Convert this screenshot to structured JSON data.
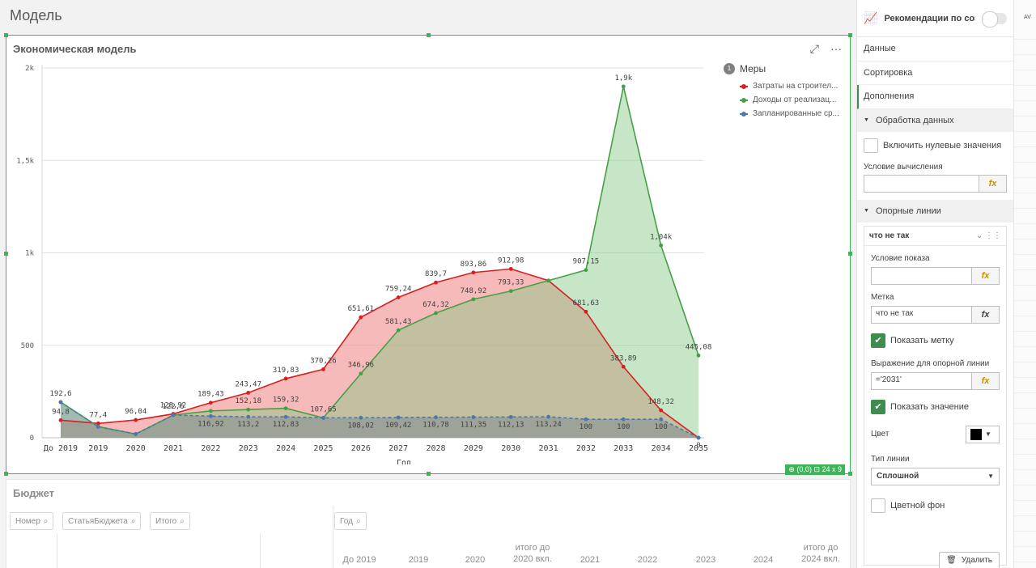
{
  "sheet": {
    "title": "Модель"
  },
  "chart_panel": {
    "title": "Экономическая модель",
    "icons": [
      "expand-icon",
      "more-icon"
    ],
    "footer": "⊕ (0,0) ⊡ 24 x 9"
  },
  "legend": {
    "title": "Меры",
    "badge": "1",
    "items": [
      {
        "label": "Затраты на строител...",
        "color": "#d62020"
      },
      {
        "label": "Доходы от реализац...",
        "color": "#45a045"
      },
      {
        "label": "Запланированные ср...",
        "color": "#4a78a8"
      }
    ]
  },
  "chart_data": {
    "type": "area",
    "xlabel": "Год",
    "ylabel": "",
    "ylim": [
      0,
      2000
    ],
    "yticks": [
      {
        "v": 0,
        "label": "0"
      },
      {
        "v": 500,
        "label": "500"
      },
      {
        "v": 1000,
        "label": "1k"
      },
      {
        "v": 1500,
        "label": "1,5k"
      },
      {
        "v": 2000,
        "label": "2k"
      }
    ],
    "categories": [
      "До 2019",
      "2019",
      "2020",
      "2021",
      "2022",
      "2023",
      "2024",
      "2025",
      "2026",
      "2027",
      "2028",
      "2029",
      "2030",
      "2031",
      "2032",
      "2033",
      "2034",
      "2035"
    ],
    "grid": "horizontal",
    "legend_position": "right",
    "series": [
      {
        "color": "#d62020",
        "fill": "rgba(240,130,130,0.55)",
        "values": [
          94.8,
          77.4,
          96.04,
          128.92,
          189.43,
          243.47,
          319.83,
          370.26,
          651.61,
          759.24,
          839.7,
          893.86,
          912.98,
          850,
          681.63,
          383.89,
          148.32,
          0
        ],
        "labels": [
          "94,8",
          "77,4",
          "96,04",
          "128,92",
          "189,43",
          "243,47",
          "319,83",
          "370,26",
          "651,61",
          "759,24",
          "839,7",
          "893,86",
          "912,98",
          "",
          "681,63",
          "383,89",
          "148,32",
          ""
        ]
      },
      {
        "color": "#45a045",
        "fill": "rgba(130,200,130,0.45)",
        "values": [
          192.6,
          60,
          20,
          122.6,
          145,
          152.18,
          159.32,
          107.65,
          346.96,
          581.43,
          674.32,
          748.92,
          793.33,
          850,
          907.15,
          1900,
          1040,
          445.08
        ],
        "labels": [
          "192,6",
          "",
          "",
          "122,6",
          "",
          "152,18",
          "159,32",
          "107,65",
          "346,96",
          "581,43",
          "674,32",
          "748,92",
          "793,33",
          "",
          "907,15",
          "1,9k",
          "1,04k",
          "445,08"
        ]
      },
      {
        "color": "#4a78a8",
        "fill": "rgba(90,110,140,0.35)",
        "dashed": true,
        "values": [
          192.6,
          60,
          20,
          122.6,
          116.92,
          113.2,
          112.83,
          107.65,
          108.02,
          109.42,
          110.78,
          111.35,
          112.13,
          113.24,
          100,
          100,
          100,
          0
        ],
        "labels": [
          "",
          "",
          "",
          "",
          "116,92",
          "113,2",
          "112,83",
          "",
          "108,02",
          "109,42",
          "110,78",
          "111,35",
          "112,13",
          "113,24",
          "100",
          "100",
          "100",
          "0"
        ]
      }
    ]
  },
  "budget": {
    "title": "Бюджет",
    "filters": [
      "Номер",
      "СтатьяБюджета",
      "Итого",
      "Год"
    ],
    "columns": [
      "До 2019",
      "2019",
      "2020",
      "итого до 2020 вкл.",
      "2021",
      "2022",
      "2023",
      "2024",
      "итого до 2024 вкл."
    ]
  },
  "props": {
    "top_label": "Рекомендации по соз...",
    "nav": [
      "Данные",
      "Сортировка",
      "Дополнения"
    ],
    "section_data": "Обработка данных",
    "include_zero": "Включить нулевые значения",
    "calc_condition": "Условие вычисления",
    "section_ref": "Опорные линии",
    "ref_name": "что не так",
    "show_condition": "Условие показа",
    "label_title": "Метка",
    "label_value": "что не так",
    "show_label": "Показать метку",
    "expr_title": "Выражение для опорной линии",
    "expr_value": "='2031'",
    "show_value": "Показать значение",
    "color_title": "Цвет",
    "line_type_title": "Тип линии",
    "line_type_value": "Сплошной",
    "colored_bg": "Цветной фон",
    "delete": "Удалить",
    "fx": "fx"
  },
  "edge": {
    "label": "AV"
  }
}
